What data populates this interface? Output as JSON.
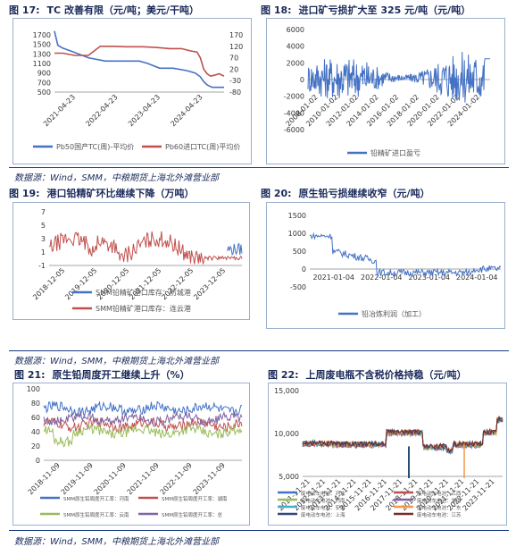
{
  "figures": [
    {
      "num": "图 17:",
      "title": "TC 改善有限（元/吨；美元/干吨）"
    },
    {
      "num": "图 18:",
      "title": "进口矿亏损扩大至 325 元/吨（元/吨）"
    },
    {
      "num": "图 19:",
      "title": "港口铅精矿环比继续下降（万吨）"
    },
    {
      "num": "图 20:",
      "title": "原生铅亏损继续收窄（元/吨）"
    },
    {
      "num": "图 21:",
      "title": "原生铅周度开工继续上升（%）"
    },
    {
      "num": "图 22:",
      "title": "上周废电瓶不含税价格持稳（元/吨）"
    }
  ],
  "sources": [
    "数据源：Wind，SMM，中粮期货上海北外滩营业部",
    "数据源：Wind，SMM，中粮期货上海北外滩营业部",
    "数据源：Wind，SMM，中粮期货上海北外滩营业部"
  ],
  "chart_data": [
    {
      "type": "line",
      "x_ticks": [
        "2021-04-23",
        "2022-04-23",
        "2023-04-23",
        "2024-04-23"
      ],
      "ylim": [
        500,
        1700
      ],
      "y_ticks": [
        "1700",
        "1500",
        "1300",
        "1100",
        "900",
        "700",
        "500"
      ],
      "y2lim": [
        -80,
        170
      ],
      "y2_ticks": [
        "170",
        "120",
        "70",
        "20",
        "-30",
        "-80"
      ],
      "series": [
        {
          "name": "Pb50国产TC(周)-平均价",
          "color": "#4472c4",
          "axis": "left",
          "points": [
            [
              0,
              1780
            ],
            [
              0.02,
              1480
            ],
            [
              0.05,
              1420
            ],
            [
              0.12,
              1330
            ],
            [
              0.2,
              1220
            ],
            [
              0.3,
              1150
            ],
            [
              0.42,
              1150
            ],
            [
              0.5,
              1150
            ],
            [
              0.55,
              1100
            ],
            [
              0.62,
              1000
            ],
            [
              0.7,
              1000
            ],
            [
              0.78,
              950
            ],
            [
              0.83,
              900
            ],
            [
              0.86,
              820
            ],
            [
              0.88,
              720
            ],
            [
              0.9,
              650
            ],
            [
              0.93,
              600
            ],
            [
              1,
              600
            ]
          ]
        },
        {
          "name": "Pb60进口TC(周)平均价",
          "color": "#c0504d",
          "axis": "right",
          "points": [
            [
              0,
              90
            ],
            [
              0.05,
              90
            ],
            [
              0.12,
              80
            ],
            [
              0.2,
              80
            ],
            [
              0.27,
              120
            ],
            [
              0.35,
              120
            ],
            [
              0.42,
              118
            ],
            [
              0.52,
              118
            ],
            [
              0.6,
              115
            ],
            [
              0.68,
              110
            ],
            [
              0.75,
              110
            ],
            [
              0.8,
              100
            ],
            [
              0.84,
              95
            ],
            [
              0.86,
              70
            ],
            [
              0.88,
              20
            ],
            [
              0.9,
              0
            ],
            [
              0.92,
              -10
            ],
            [
              0.95,
              -5
            ],
            [
              0.97,
              0
            ],
            [
              1,
              -10
            ]
          ]
        }
      ]
    },
    {
      "type": "line",
      "x_ticks": [
        "2008-01-02",
        "2010-01-02",
        "2012-01-02",
        "2014-01-02",
        "2016-01-02",
        "2018-01-02",
        "2020-01-02",
        "2022-01-02",
        "2024-01-02"
      ],
      "ylim": [
        -6000,
        6000
      ],
      "y_ticks": [
        "6000",
        "4000",
        "2000",
        "0",
        "-2000",
        "-4000",
        "-6000"
      ],
      "series": [
        {
          "name": "铅精矿进口盈亏",
          "color": "#4472c4"
        }
      ]
    },
    {
      "type": "line",
      "x_ticks": [
        "2018-12-05",
        "2019-12-05",
        "2020-12-05",
        "2021-12-05",
        "2022-12-05",
        "2023-12-05"
      ],
      "ylim": [
        -1,
        7
      ],
      "y_ticks": [
        "7",
        "5",
        "3",
        "1",
        "-1"
      ],
      "series": [
        {
          "name": "SMM铅精矿港口库存：防城港",
          "color": "#4472c4"
        },
        {
          "name": "SMM铅精矿港口库存：连云港",
          "color": "#c0504d"
        }
      ]
    },
    {
      "type": "line",
      "x_ticks": [
        "2021-01-04",
        "2022-01-04",
        "2023-01-04",
        "2024-01-04"
      ],
      "ylim": [
        -500,
        1500
      ],
      "y_ticks": [
        "1500",
        "1000",
        "500",
        "0",
        "-500"
      ],
      "series": [
        {
          "name": "铅冶炼利润（加工）",
          "color": "#4472c4"
        }
      ]
    },
    {
      "type": "line",
      "x_ticks": [
        "2018-11-09",
        "2019-11-09",
        "2020-11-09",
        "2021-11-09",
        "2022-11-09",
        "2023-11-09"
      ],
      "ylim": [
        0,
        100
      ],
      "y_ticks": [
        "100",
        "80",
        "60",
        "40",
        "20",
        "0"
      ],
      "series": [
        {
          "name": "SMM原生铅周度开工率：河南",
          "color": "#4472c4"
        },
        {
          "name": "SMM原生铅周度开工率：湖南",
          "color": "#c0504d"
        },
        {
          "name": "SMM原生铅周度开工率：云南",
          "color": "#9bbb59"
        },
        {
          "name": "SMM原生铅周度开工率：总",
          "color": "#8064a2"
        }
      ]
    },
    {
      "type": "line",
      "x_ticks": [
        "2011-11-21",
        "2012-11-21",
        "2013-11-21",
        "2014-11-21",
        "2015-11-21",
        "2016-11-21",
        "2017-11-21",
        "2018-11-21",
        "2019-11-21",
        "2020-11-21",
        "2021-11-21",
        "2022-11-21",
        "2023-11-21"
      ],
      "ylim": [
        5000,
        15000
      ],
      "y_ticks": [
        "15,000",
        "10,000",
        "5,000"
      ],
      "series": [
        {
          "name": "废电动车电池：河北",
          "color": "#4472c4"
        },
        {
          "name": "废电动车电池：江西",
          "color": "#c0504d"
        },
        {
          "name": "废电动车电池：河南",
          "color": "#9bbb59"
        },
        {
          "name": "废电动车电池：湖南",
          "color": "#8064a2"
        },
        {
          "name": "废电动车电池：安徽",
          "color": "#4bacc6"
        },
        {
          "name": "废电动车电池：广东",
          "color": "#f79646"
        },
        {
          "name": "废电动车电池：上海",
          "color": "#2c4d75"
        },
        {
          "name": "废电动车电池：江苏",
          "color": "#772c2a"
        }
      ]
    }
  ]
}
